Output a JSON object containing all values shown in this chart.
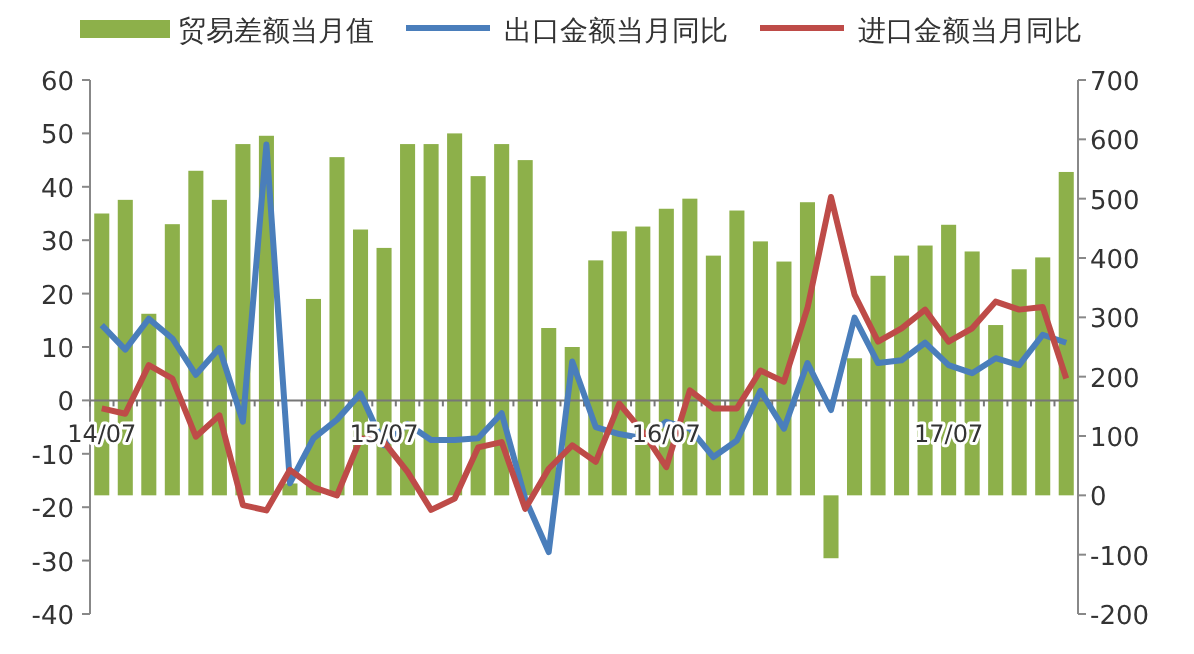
{
  "chart_data": {
    "type": "bar",
    "categories": [
      "14/07",
      null,
      null,
      null,
      null,
      null,
      null,
      null,
      null,
      null,
      null,
      null,
      "15/07",
      null,
      null,
      null,
      null,
      null,
      null,
      null,
      null,
      null,
      null,
      null,
      "16/07",
      null,
      null,
      null,
      null,
      null,
      null,
      null,
      null,
      null,
      null,
      null,
      "17/07",
      null,
      null,
      null,
      null,
      null
    ],
    "series": [
      {
        "name": "贸易差额当月值",
        "axis": "y2",
        "color": "#8db04a",
        "values": [
          475,
          498,
          306,
          457,
          547,
          498,
          592,
          606,
          20,
          331,
          570,
          448,
          417,
          592,
          592,
          610,
          538,
          592,
          565,
          282,
          250,
          396,
          445,
          453,
          483,
          500,
          404,
          480,
          428,
          394,
          494,
          -106,
          231,
          370,
          404,
          421,
          456,
          411,
          287,
          381,
          401,
          545
        ]
      },
      {
        "name": "出口金额当月同比",
        "type": "line",
        "axis": "y",
        "color": "#4a7ebb",
        "values": [
          14.1,
          9.5,
          15.3,
          11.6,
          4.8,
          9.8,
          -4,
          47.9,
          -15.5,
          -7.1,
          -3.6,
          1.3,
          -8.4,
          -4.4,
          -7.4,
          -7.4,
          -7.1,
          -2.4,
          -18.4,
          -28.4,
          7.3,
          -5,
          -6.3,
          -7.1,
          -4,
          -5.3,
          -10.6,
          -7.5,
          1.8,
          -5.3,
          7,
          -1.8,
          15.5,
          7,
          7.5,
          10.8,
          6.6,
          5.1,
          7.9,
          6.6,
          12.3,
          10.8
        ]
      },
      {
        "name": "进口金额当月同比",
        "type": "line",
        "axis": "y",
        "color": "#be4b48",
        "values": [
          -1.5,
          -2.5,
          6.6,
          4.1,
          -6.8,
          -2.8,
          -19.6,
          -20.6,
          -13,
          -16.3,
          -17.8,
          -7.1,
          -7.8,
          -13.4,
          -20.5,
          -18.4,
          -8.8,
          -7.8,
          -20.3,
          -12.8,
          -8.4,
          -11.5,
          -0.6,
          -5.9,
          -12.5,
          1.9,
          -1.5,
          -1.5,
          5.6,
          3.5,
          17.3,
          38.1,
          19.8,
          11,
          13.5,
          17,
          11,
          13.5,
          18.5,
          17,
          17.5,
          4.1
        ]
      }
    ],
    "ylim": [
      -40,
      60
    ],
    "yticks": [
      -40,
      -30,
      -20,
      -10,
      0,
      10,
      20,
      30,
      40,
      50,
      60
    ],
    "y2lim": [
      -200,
      700
    ],
    "y2ticks": [
      -200,
      -100,
      0,
      100,
      200,
      300,
      400,
      500,
      600,
      700
    ],
    "legend": "top",
    "grid": false,
    "marker": "none",
    "line_style": "solid"
  }
}
